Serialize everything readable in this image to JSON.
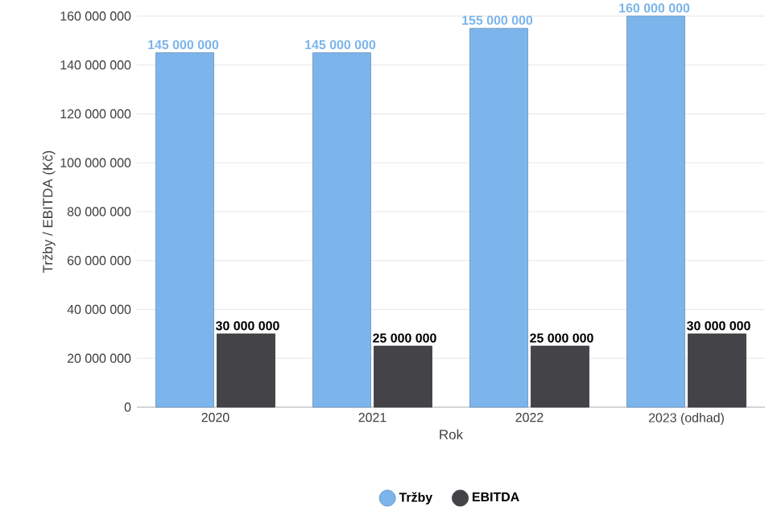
{
  "chart_data": {
    "type": "bar",
    "xlabel": "Rok",
    "ylabel": "Tržby / EBITDA (Kč)",
    "categories": [
      "2020",
      "2021",
      "2022",
      "2023 (odhad)"
    ],
    "series": [
      {
        "name": "Tržby",
        "color": "#7cb5ec",
        "values": [
          145000000,
          145000000,
          155000000,
          160000000
        ],
        "value_labels": [
          "145 000 000",
          "145 000 000",
          "155 000 000",
          "160 000 000"
        ]
      },
      {
        "name": "EBITDA",
        "color": "#434348",
        "values": [
          30000000,
          25000000,
          25000000,
          30000000
        ],
        "value_labels": [
          "30 000 000",
          "25 000 000",
          "25 000 000",
          "30 000 000"
        ]
      }
    ],
    "ylim": [
      0,
      160000000
    ],
    "yticks": [
      {
        "value": 0,
        "label": "0"
      },
      {
        "value": 20000000,
        "label": "20 000 000"
      },
      {
        "value": 40000000,
        "label": "40 000 000"
      },
      {
        "value": 60000000,
        "label": "60 000 000"
      },
      {
        "value": 80000000,
        "label": "80 000 000"
      },
      {
        "value": 100000000,
        "label": "100 000 000"
      },
      {
        "value": 120000000,
        "label": "120 000 000"
      },
      {
        "value": 140000000,
        "label": "140 000 000"
      },
      {
        "value": 160000000,
        "label": "160 000 000"
      }
    ],
    "grid": "y",
    "legend": "bottom",
    "marker": "circle"
  }
}
